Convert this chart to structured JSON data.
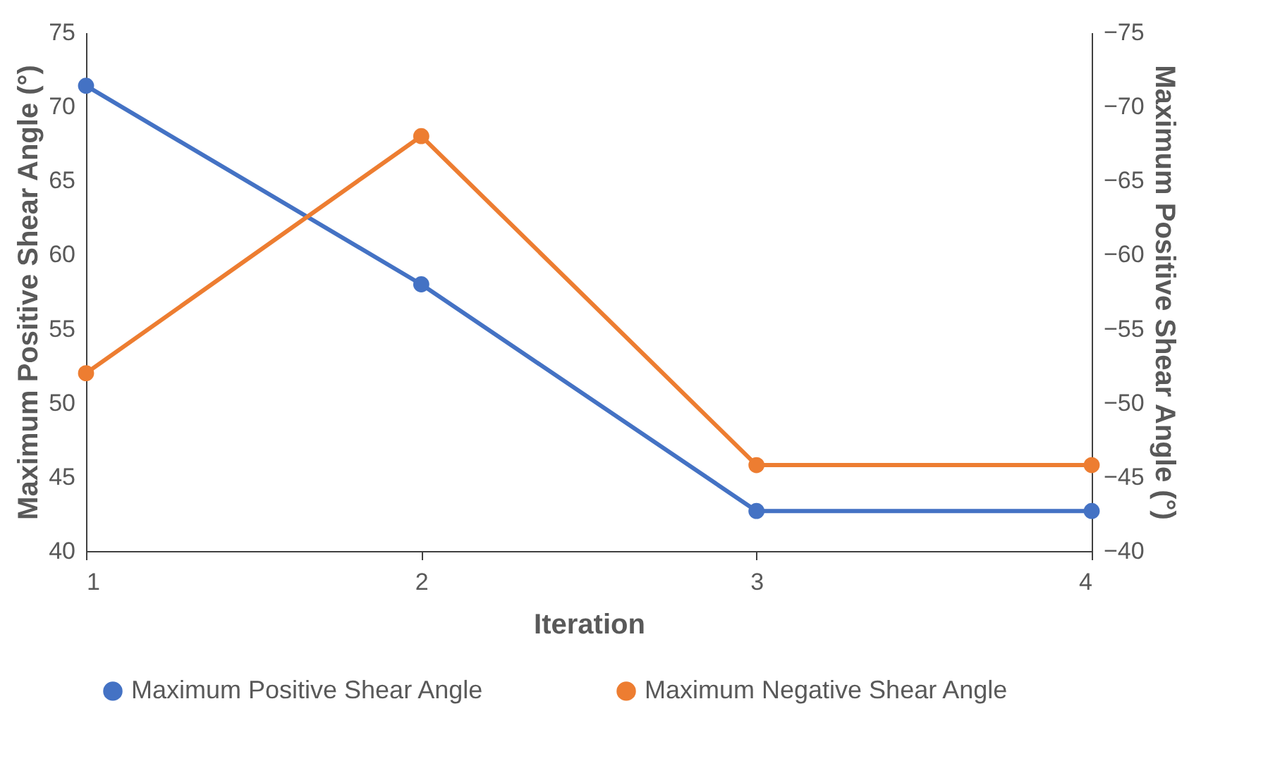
{
  "chart_data": {
    "type": "line",
    "xlabel": "Iteration",
    "ylabel": "Maximum Positive Shear Angle (°)",
    "y2label": "Maximum Positive Shear Angle (°)",
    "x": [
      1,
      2,
      3,
      4
    ],
    "xlim": [
      1,
      4
    ],
    "xticks": [
      1,
      2,
      3,
      4
    ],
    "ylim": [
      40,
      75
    ],
    "yticks": [
      40,
      45,
      50,
      55,
      60,
      65,
      70,
      75
    ],
    "y2lim": [
      -40,
      -75
    ],
    "y2ticks": [
      -40,
      -45,
      -50,
      -55,
      -60,
      -65,
      -70,
      -75
    ],
    "series": [
      {
        "name": "Maximum Positive Shear Angle",
        "color": "#4472c4",
        "values": [
          71.4,
          58,
          42.7,
          42.7
        ]
      },
      {
        "name": "Maximum Negative Shear Angle",
        "color": "#ed7d31",
        "values": [
          -52,
          -68,
          -45.8,
          -45.8
        ],
        "axis": "y2"
      }
    ],
    "marker": "circle",
    "line_style": "solid",
    "grid": false,
    "legend": "bottom"
  }
}
